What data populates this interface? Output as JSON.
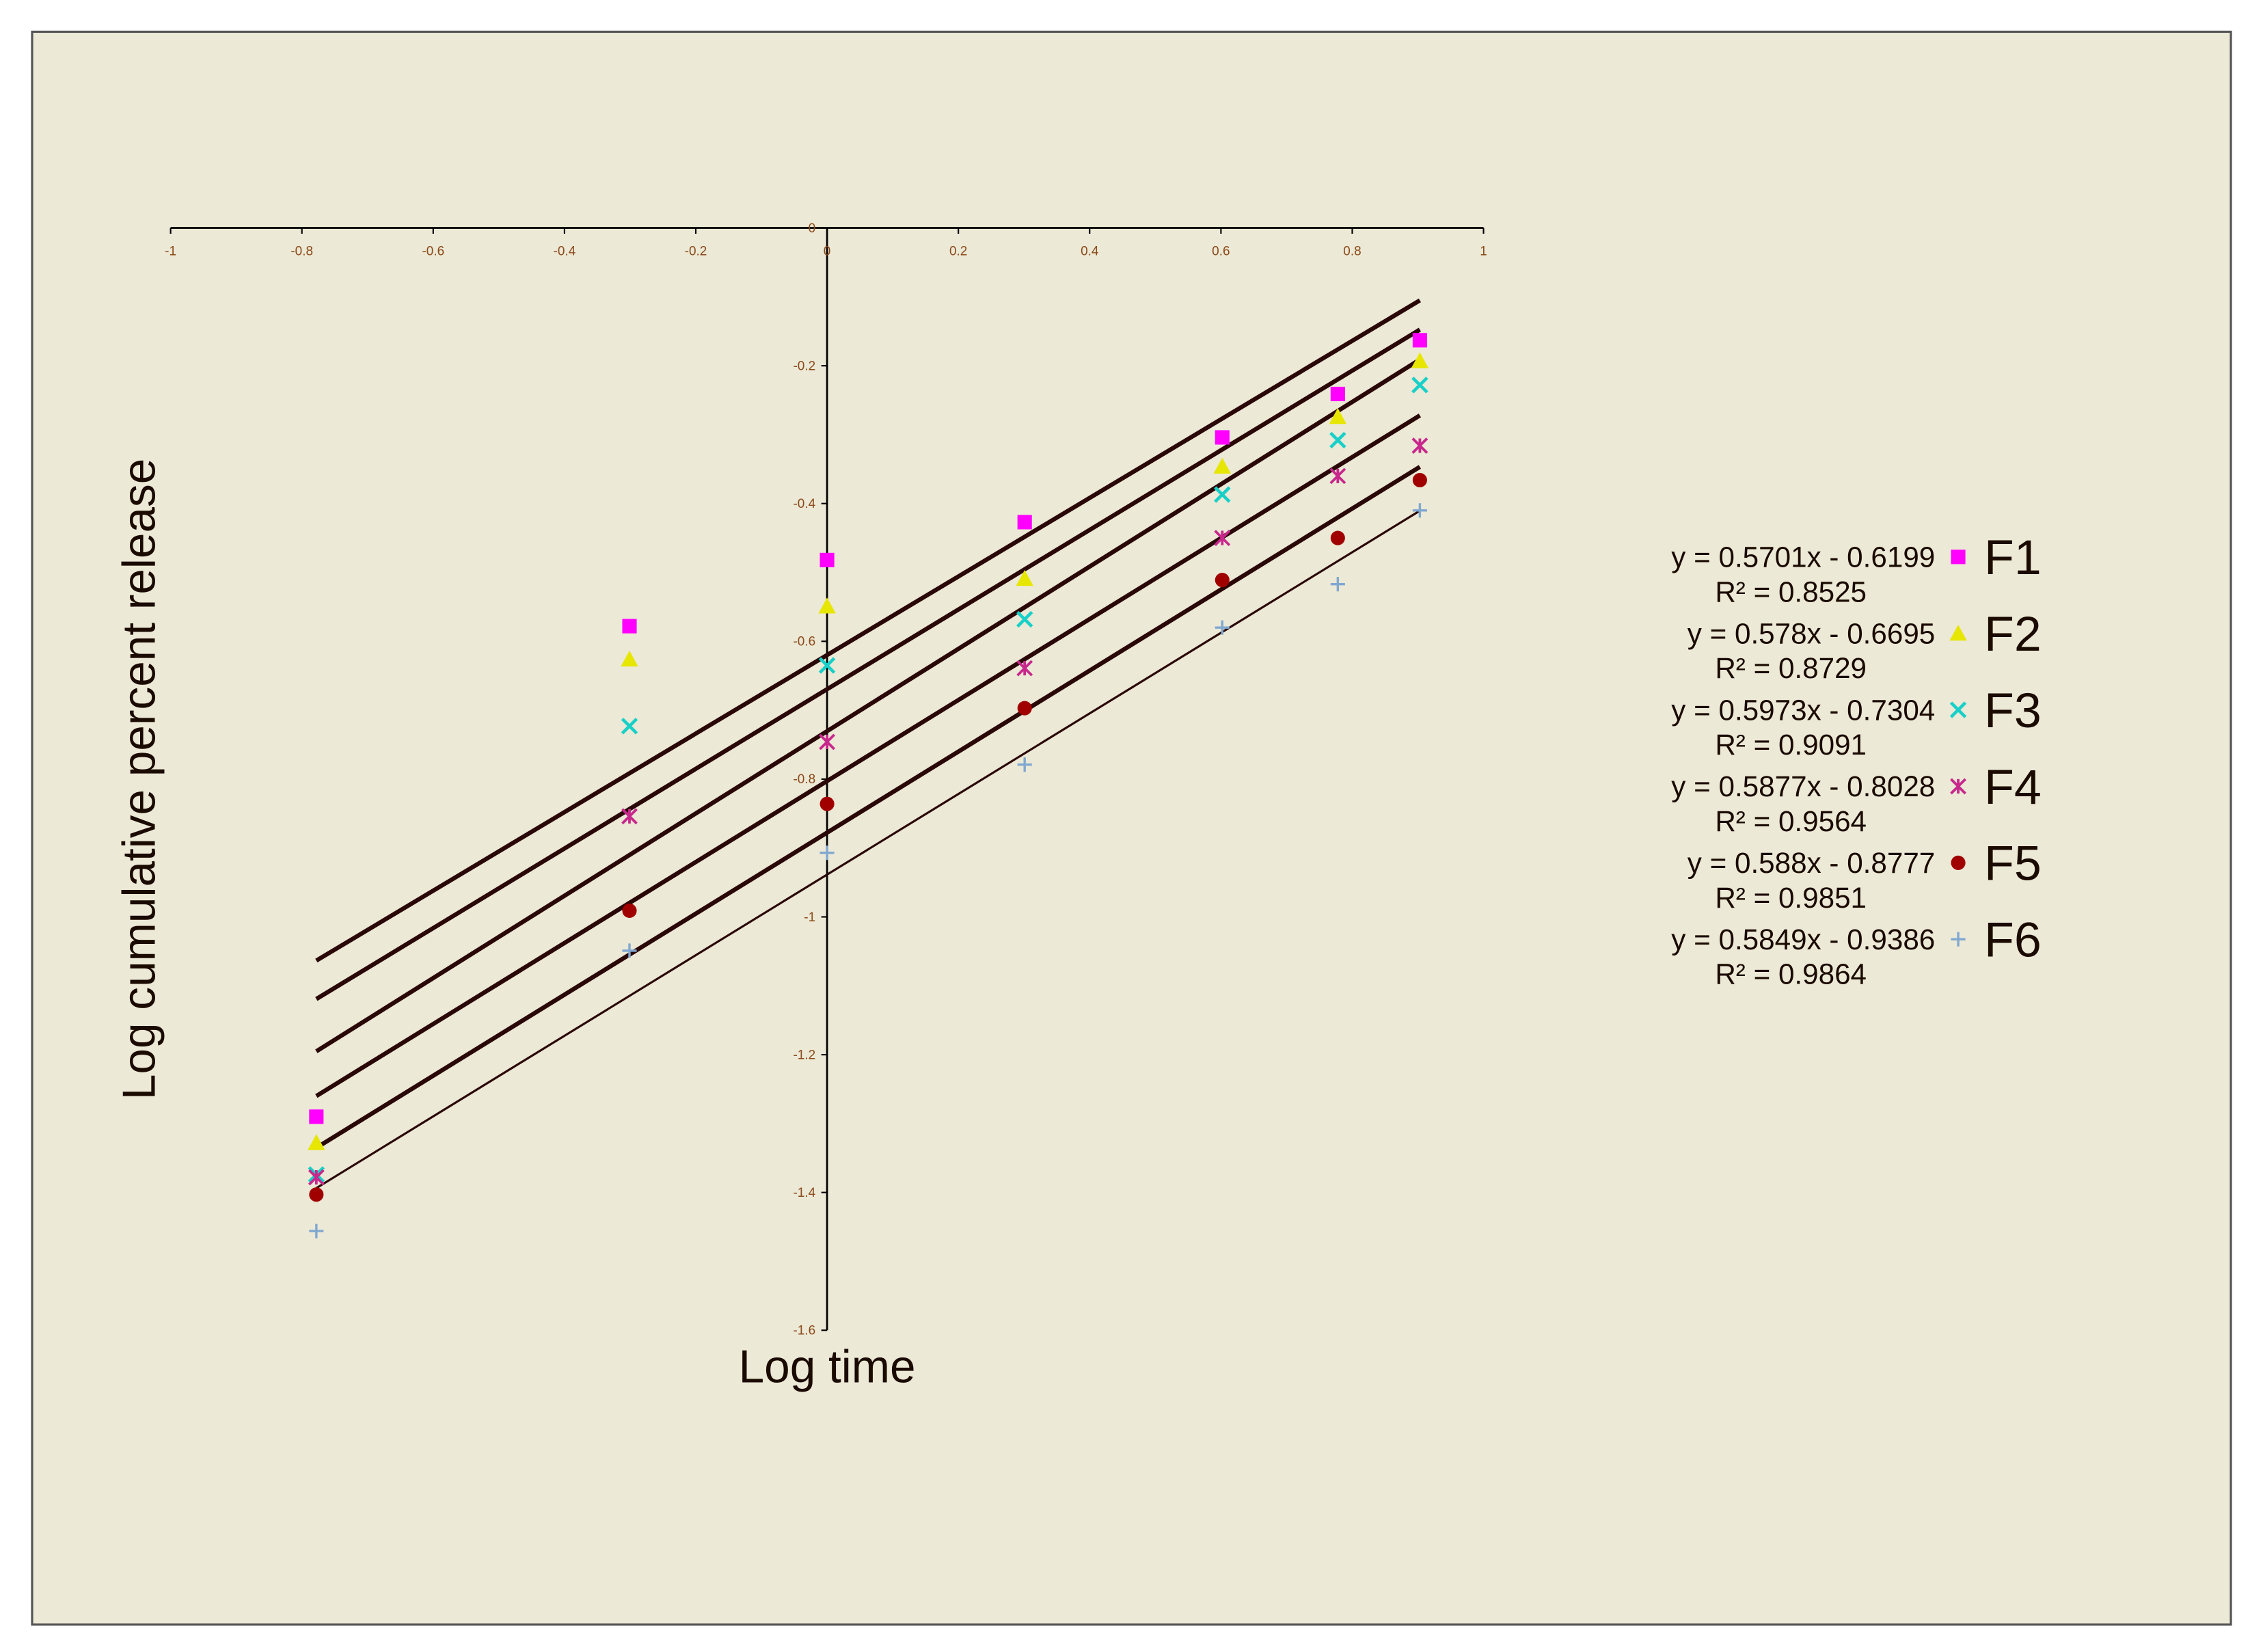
{
  "chart_data": {
    "type": "scatter",
    "x_label": "Log time",
    "y_label": "Log cumulative percent release",
    "xlim": [
      -1,
      1
    ],
    "xticks": [
      -1,
      -0.8,
      -0.6,
      -0.4,
      -0.2,
      0,
      0.2,
      0.4,
      0.6,
      0.8,
      1
    ],
    "ylim": [
      -1.6,
      0
    ],
    "yticks": [
      0,
      -0.2,
      -0.4,
      -0.6,
      -0.8,
      -1,
      -1.2,
      -1.4,
      -1.6
    ],
    "legend": "right",
    "trendline_color": "#2a0808",
    "x": [
      -0.778,
      -0.301,
      0,
      0.301,
      0.602,
      0.778,
      0.903
    ],
    "series": [
      {
        "name": "F1",
        "color": "#ff00ff",
        "marker": "square",
        "values": [
          -1.29,
          -0.578,
          -0.482,
          -0.427,
          -0.304,
          -0.241,
          -0.163
        ],
        "trendline": {
          "slope": 0.5701,
          "intercept": -0.6199
        },
        "equation": "y = 0.5701x - 0.6199",
        "r2_label": "R² = 0.8525"
      },
      {
        "name": "F2",
        "color": "#e6e600",
        "marker": "triangle",
        "values": [
          -1.328,
          -0.626,
          -0.549,
          -0.509,
          -0.346,
          -0.274,
          -0.193
        ],
        "trendline": {
          "slope": 0.578,
          "intercept": -0.6695
        },
        "equation": "y = 0.578x - 0.6695",
        "r2_label": "R² = 0.8729"
      },
      {
        "name": "F3",
        "color": "#18d0c8",
        "marker": "x",
        "values": [
          -1.374,
          -0.723,
          -0.635,
          -0.568,
          -0.387,
          -0.308,
          -0.228
        ],
        "trendline": {
          "slope": 0.5973,
          "intercept": -0.7304
        },
        "equation": "y = 0.5973x - 0.7304",
        "r2_label": "R² = 0.9091"
      },
      {
        "name": "F4",
        "color": "#c8288c",
        "marker": "star",
        "values": [
          -1.378,
          -0.854,
          -0.746,
          -0.639,
          -0.45,
          -0.36,
          -0.316
        ],
        "trendline": {
          "slope": 0.5877,
          "intercept": -0.8028
        },
        "equation": "y = 0.5877x - 0.8028",
        "r2_label": "R² = 0.9564"
      },
      {
        "name": "F5",
        "color": "#a00000",
        "marker": "circle",
        "values": [
          -1.403,
          -0.991,
          -0.836,
          -0.697,
          -0.511,
          -0.45,
          -0.366
        ],
        "trendline": {
          "slope": 0.588,
          "intercept": -0.8777
        },
        "equation": "y = 0.588x - 0.8777",
        "r2_label": "R² = 0.9851"
      },
      {
        "name": "F6",
        "color": "#80a8d0",
        "marker": "plus",
        "values": [
          -1.456,
          -1.049,
          -0.907,
          -0.779,
          -0.58,
          -0.517,
          -0.41
        ],
        "trendline": {
          "slope": 0.5849,
          "intercept": -0.9386
        },
        "equation": "y = 0.5849x - 0.9386",
        "r2_label": "R² = 0.9864"
      }
    ]
  }
}
